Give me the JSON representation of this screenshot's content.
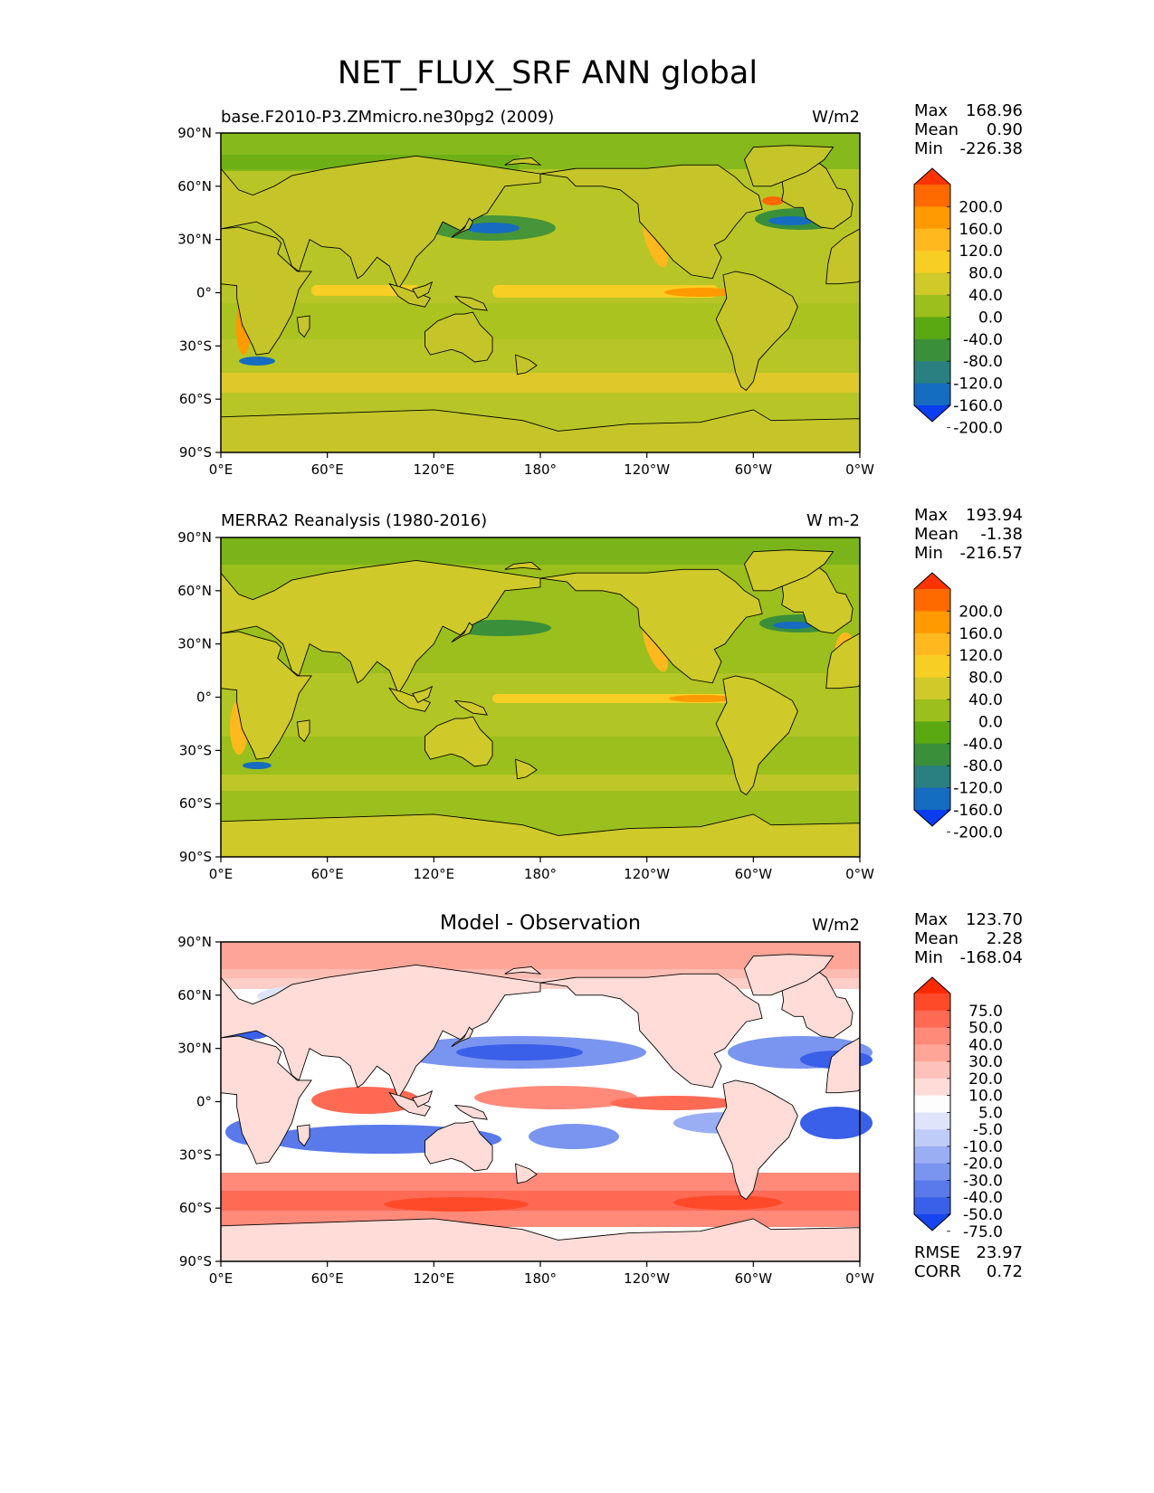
{
  "title": "NET_FLUX_SRF ANN global",
  "x_ticks": [
    "0°E",
    "60°E",
    "120°E",
    "180°",
    "120°W",
    "60°W",
    "0°W"
  ],
  "y_ticks": [
    "90°N",
    "60°N",
    "30°N",
    "0°",
    "30°S",
    "60°S",
    "90°S"
  ],
  "panels": [
    {
      "left_title": "base.F2010-P3.ZMmicro.ne30pg2 (2009)",
      "center_title": "",
      "units": "W/m2",
      "stats": {
        "max_label": "Max",
        "max": "168.96",
        "mean_label": "Mean",
        "mean": "0.90",
        "min_label": "Min",
        "min": "-226.38"
      },
      "colorbar": {
        "labels": [
          "200.0",
          "160.0",
          "120.0",
          "80.0",
          "40.0",
          "0.0",
          "-40.0",
          "-80.0",
          "-120.0",
          "-160.0",
          "-200.0"
        ],
        "colors": [
          "#ff3300",
          "#ff6a00",
          "#ff9a00",
          "#ffb91f",
          "#f7ce24",
          "#cfc92a",
          "#9bbf1c",
          "#5aa913",
          "#3a8f3b",
          "#2a8080",
          "#166cc0",
          "#0a3cf0"
        ]
      }
    },
    {
      "left_title": "MERRA2 Reanalysis (1980-2016)",
      "center_title": "",
      "units": "W m-2",
      "stats": {
        "max_label": "Max",
        "max": "193.94",
        "mean_label": "Mean",
        "mean": "-1.38",
        "min_label": "Min",
        "min": "-216.57"
      },
      "colorbar": {
        "labels": [
          "200.0",
          "160.0",
          "120.0",
          "80.0",
          "40.0",
          "0.0",
          "-40.0",
          "-80.0",
          "-120.0",
          "-160.0",
          "-200.0"
        ],
        "colors": [
          "#ff3300",
          "#ff6a00",
          "#ff9a00",
          "#ffb91f",
          "#f7ce24",
          "#cfc92a",
          "#9bbf1c",
          "#5aa913",
          "#3a8f3b",
          "#2a8080",
          "#166cc0",
          "#0a3cf0"
        ]
      }
    },
    {
      "left_title": "",
      "center_title": "Model - Observation",
      "units": "W/m2",
      "stats": {
        "max_label": "Max",
        "max": "123.70",
        "mean_label": "Mean",
        "mean": "2.28",
        "min_label": "Min",
        "min": "-168.04"
      },
      "colorbar": {
        "labels": [
          "75.0",
          "50.0",
          "40.0",
          "30.0",
          "20.0",
          "10.0",
          "5.0",
          "-5.0",
          "-10.0",
          "-20.0",
          "-30.0",
          "-40.0",
          "-50.0",
          "-75.0"
        ],
        "colors": [
          "#ff2a00",
          "#ff4a2a",
          "#ff6a55",
          "#ff8a7a",
          "#ffa598",
          "#ffc2ba",
          "#ffdcd7",
          "#fdfdfd",
          "#dfe4fb",
          "#c0ccf8",
          "#9aaff3",
          "#7a95ef",
          "#5a7aeb",
          "#3a5fe8",
          "#1644ee"
        ]
      },
      "footer": {
        "rmse_label": "RMSE",
        "rmse": "23.97",
        "corr_label": "CORR",
        "corr": "0.72"
      }
    }
  ]
}
